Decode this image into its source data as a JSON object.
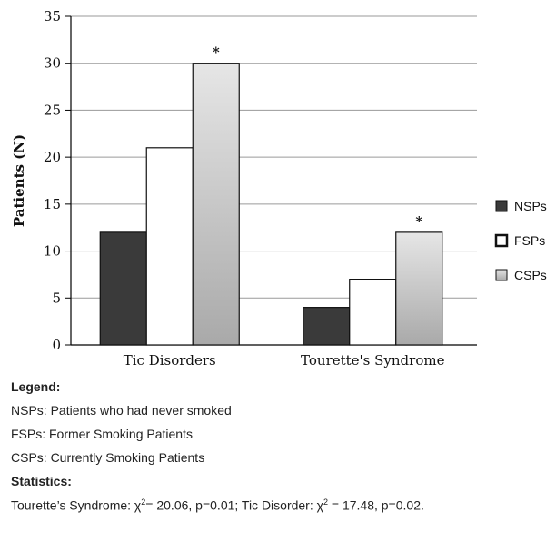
{
  "chart_data": {
    "type": "bar",
    "title": "",
    "ylabel": "Patients (N)",
    "xlabel": "",
    "ylim": [
      0,
      35
    ],
    "yticks": [
      0,
      5,
      10,
      15,
      20,
      25,
      30,
      35
    ],
    "grid": true,
    "legend_position": "right",
    "categories": [
      "Tic Disorders",
      "Tourette's Syndrome"
    ],
    "series": [
      {
        "name": "NSPs",
        "values": [
          12,
          4
        ],
        "color": "#3a3a3a"
      },
      {
        "name": "FSPs",
        "values": [
          21,
          7
        ],
        "color": "#ffffff"
      },
      {
        "name": "CSPs",
        "values": [
          30,
          12
        ],
        "color": "#c8c8c8"
      }
    ],
    "annotations": [
      {
        "category": "Tic Disorders",
        "series": "CSPs",
        "text": "*"
      },
      {
        "category": "Tourette's Syndrome",
        "series": "CSPs",
        "text": "*"
      }
    ]
  },
  "notes": {
    "legend_heading": "Legend:",
    "legend_lines": [
      "NSPs: Patients who had never smoked",
      "FSPs: Former Smoking Patients",
      "CSPs: Currently Smoking Patients"
    ],
    "stats_heading": "Statistics:",
    "stats": {
      "ts_label": "Tourette’s Syndrome: χ",
      "ts_exp": "2",
      "ts_value": "= 20.06, p=0.01; Tic Disorder: χ",
      "td_exp": "2",
      "td_value": " = 17.48, p=0.02."
    }
  }
}
